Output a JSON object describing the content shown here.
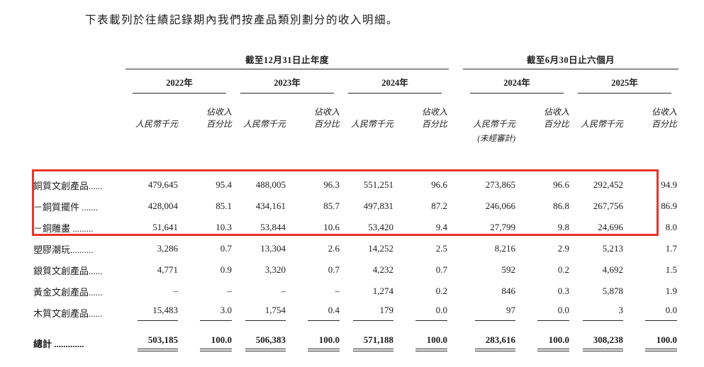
{
  "title": "下表載列於往績記錄期內我們按產品類別劃分的收入明細。",
  "highlight_color": "#e8342a",
  "table": {
    "groups": [
      {
        "label": "截至12月31日止年度",
        "years": [
          "2022年",
          "2023年",
          "2024年"
        ]
      },
      {
        "label": "截至6月30日止六個月",
        "years": [
          "2024年",
          "2025年"
        ]
      }
    ],
    "subheaders": {
      "amount": "人民幣千元",
      "pct_line1": "佔收入",
      "pct_line2": "百分比",
      "unaudited": "(未經審計)"
    },
    "rows": [
      {
        "label": "銅質文創產品......",
        "values": [
          "479,645",
          "95.4",
          "488,005",
          "96.3",
          "551,251",
          "96.6",
          "273,865",
          "96.6",
          "292,452",
          "94.9"
        ]
      },
      {
        "label": "－銅質擺件 .......",
        "values": [
          "428,004",
          "85.1",
          "434,161",
          "85.7",
          "497,831",
          "87.2",
          "246,066",
          "86.8",
          "267,756",
          "86.9"
        ]
      },
      {
        "label": "－銅雕畫 .........",
        "values": [
          "51,641",
          "10.3",
          "53,844",
          "10.6",
          "53,420",
          "9.4",
          "27,799",
          "9.8",
          "24,696",
          "8.0"
        ]
      },
      {
        "label": "塑膠潮玩..........",
        "values": [
          "3,286",
          "0.7",
          "13,304",
          "2.6",
          "14,252",
          "2.5",
          "8,216",
          "2.9",
          "5,213",
          "1.7"
        ]
      },
      {
        "label": "銀質文創產品......",
        "values": [
          "4,771",
          "0.9",
          "3,320",
          "0.7",
          "4,232",
          "0.7",
          "592",
          "0.2",
          "4,692",
          "1.5"
        ]
      },
      {
        "label": "黃金文創產品......",
        "values": [
          "–",
          "–",
          "–",
          "–",
          "1,274",
          "0.2",
          "846",
          "0.3",
          "5,878",
          "1.9"
        ]
      },
      {
        "label": "木質文創產品......",
        "values": [
          "15,483",
          "3.0",
          "1,754",
          "0.4",
          "179",
          "0.0",
          "97",
          "0.0",
          "3",
          "0.0"
        ]
      },
      {
        "label": "總計 .............",
        "total": true,
        "values": [
          "503,185",
          "100.0",
          "506,383",
          "100.0",
          "571,188",
          "100.0",
          "283,616",
          "100.0",
          "308,238",
          "100.0"
        ]
      }
    ]
  }
}
